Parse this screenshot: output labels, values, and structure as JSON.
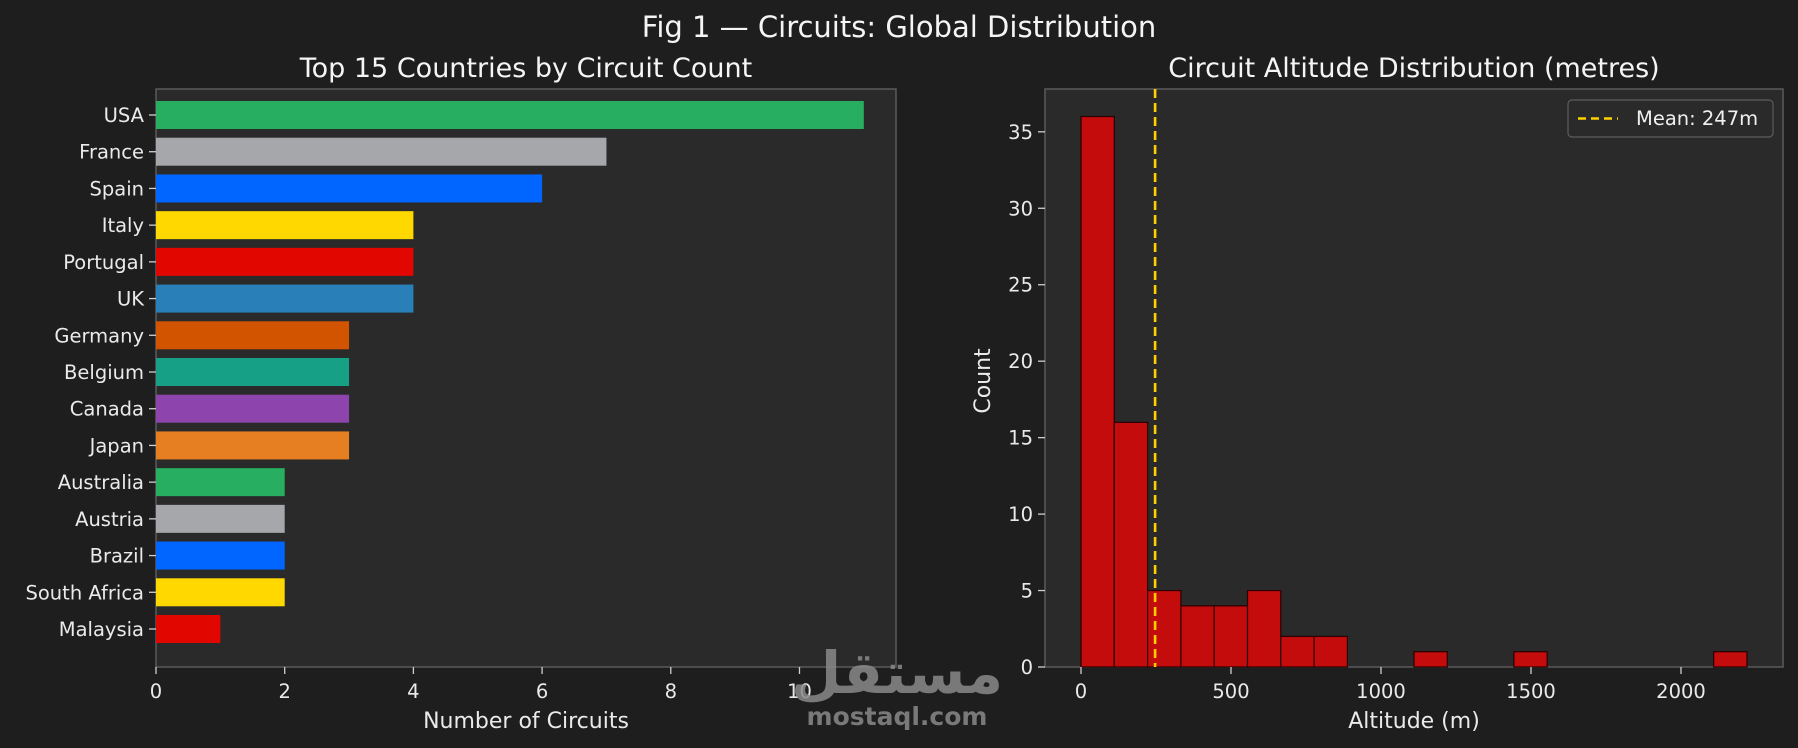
{
  "figure": {
    "title": "Fig 1 — Circuits: Global Distribution"
  },
  "watermark": {
    "arabic": "مستقل",
    "latin": "mostaql.com"
  },
  "chart_data": [
    {
      "type": "bar",
      "orientation": "horizontal",
      "title": "Top 15 Countries by Circuit Count",
      "xlabel": "Number of Circuits",
      "ylabel": "",
      "xlim": [
        0,
        11.5
      ],
      "xticks": [
        0,
        2,
        4,
        6,
        8,
        10
      ],
      "grid": false,
      "categories": [
        "USA",
        "France",
        "Spain",
        "Italy",
        "Portugal",
        "UK",
        "Germany",
        "Belgium",
        "Canada",
        "Japan",
        "Australia",
        "Austria",
        "Brazil",
        "South Africa",
        "Malaysia"
      ],
      "values": [
        11,
        7,
        6,
        4,
        4,
        4,
        3,
        3,
        3,
        3,
        2,
        2,
        2,
        2,
        1
      ],
      "colors": [
        "#27ae60",
        "#a5a7ab",
        "#0066ff",
        "#ffd800",
        "#e10600",
        "#2980b9",
        "#d35400",
        "#16a085",
        "#8e44ad",
        "#e67e22",
        "#27ae60",
        "#a5a7ab",
        "#0066ff",
        "#ffd800",
        "#e10600"
      ]
    },
    {
      "type": "bar",
      "subtype": "histogram",
      "title": "Circuit Altitude Distribution (metres)",
      "xlabel": "Altitude (m)",
      "ylabel": "Count",
      "xlim": [
        -120,
        2340
      ],
      "ylim": [
        0,
        37.8
      ],
      "xticks": [
        0,
        500,
        1000,
        1500,
        2000
      ],
      "yticks": [
        0,
        5,
        10,
        15,
        20,
        25,
        30,
        35
      ],
      "grid": false,
      "bar_color": "#c40c0c",
      "bin_width": 111,
      "bins_start": [
        0,
        111,
        222,
        333,
        444,
        555,
        666,
        777,
        1110,
        1443,
        2109
      ],
      "counts": [
        36,
        16,
        5,
        4,
        4,
        5,
        2,
        2,
        1,
        1,
        1
      ],
      "mean_line": {
        "value": 247,
        "color": "#ffd000",
        "style": "dashed"
      },
      "legend": {
        "position": "top-right",
        "entries": [
          "Mean: 247m"
        ]
      }
    }
  ]
}
